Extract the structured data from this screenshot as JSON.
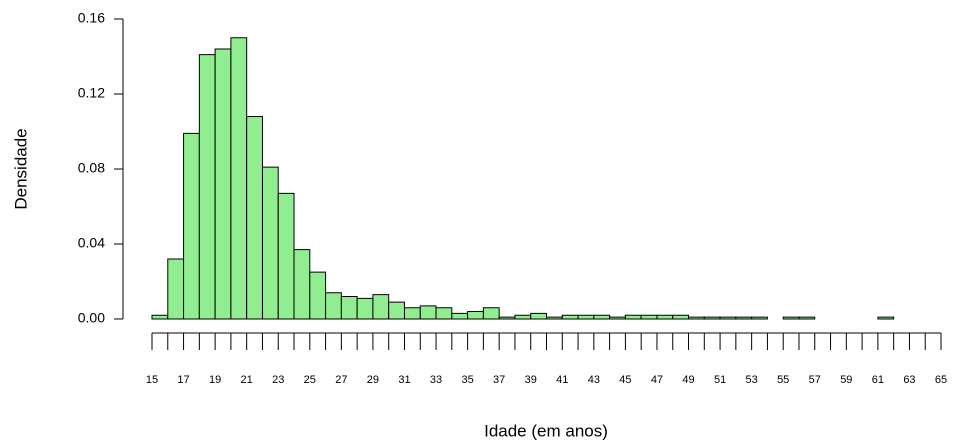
{
  "chart_data": {
    "type": "histogram",
    "xlabel": "Idade (em anos)",
    "ylabel": "Densidade",
    "bins": [
      15,
      16,
      17,
      18,
      19,
      20,
      21,
      22,
      23,
      24,
      25,
      26,
      27,
      28,
      29,
      30,
      31,
      32,
      33,
      34,
      35,
      36,
      37,
      38,
      39,
      40,
      41,
      42,
      43,
      44,
      45,
      46,
      47,
      48,
      49,
      50,
      51,
      52,
      53,
      54,
      55,
      56,
      57,
      58,
      59,
      60,
      61,
      62
    ],
    "values": [
      0.002,
      0.032,
      0.099,
      0.141,
      0.144,
      0.15,
      0.108,
      0.081,
      0.067,
      0.037,
      0.025,
      0.014,
      0.012,
      0.011,
      0.013,
      0.009,
      0.006,
      0.007,
      0.006,
      0.003,
      0.004,
      0.006,
      0.001,
      0.002,
      0.003,
      0.001,
      0.002,
      0.002,
      0.002,
      0.001,
      0.002,
      0.002,
      0.002,
      0.002,
      0.001,
      0.001,
      0.001,
      0.001,
      0.001,
      0,
      0.001,
      0.001,
      0,
      0,
      0,
      0,
      0.001
    ],
    "color": "#90ee90",
    "xlim": [
      15,
      65
    ],
    "xticks": [
      15,
      17,
      19,
      21,
      23,
      25,
      27,
      29,
      31,
      33,
      35,
      37,
      39,
      41,
      43,
      45,
      47,
      49,
      51,
      53,
      55,
      57,
      59,
      61,
      63,
      65
    ],
    "xminorticks": [
      16,
      18,
      20,
      22,
      24,
      26,
      28,
      30,
      32,
      34,
      36,
      38,
      40,
      42,
      44,
      46,
      48,
      50,
      52,
      54,
      56,
      58,
      60,
      62,
      64
    ],
    "ylim": [
      0,
      0.16
    ],
    "yticks": [
      {
        "value": 0,
        "label": "0.00"
      },
      0.04,
      0.08,
      0.12,
      0.16
    ]
  }
}
